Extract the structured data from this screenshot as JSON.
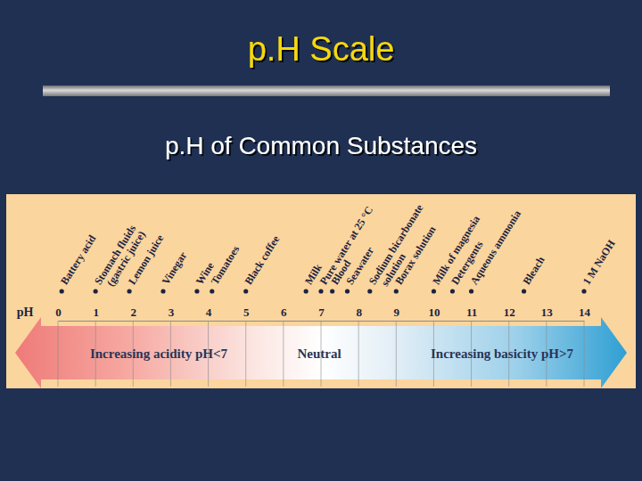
{
  "chart_data": {
    "type": "scale",
    "title": "p.H Scale",
    "subtitle": "p.H of Common Substances",
    "xlabel": "pH",
    "xlim": [
      0,
      14
    ],
    "xticks": [
      0,
      1,
      2,
      3,
      4,
      5,
      6,
      7,
      8,
      9,
      10,
      11,
      12,
      13,
      14
    ],
    "categories": [
      "Battery acid",
      "Stomach fluids\n(gastric juice)",
      "Lemon juice",
      "Vinegar",
      "Wine",
      "Tomatoes",
      "Black coffee",
      "Milk",
      "Pure water at 25 °C",
      "Blood",
      "Seawater",
      "Sodium bicarbonate\nsolution",
      "Borax solution",
      "Milk of magnesia",
      "Detergents",
      "Aqueous ammonia",
      "Bleach",
      "1 M NaOH"
    ],
    "values": [
      0.1,
      1.0,
      1.9,
      2.8,
      3.7,
      4.1,
      5.0,
      6.6,
      7.0,
      7.3,
      7.7,
      8.3,
      9.0,
      10.0,
      10.5,
      11.0,
      12.4,
      14.0
    ],
    "annotations": [
      "Increasing acidity pH<7",
      "Neutral",
      "Increasing basicity pH>7"
    ]
  }
}
